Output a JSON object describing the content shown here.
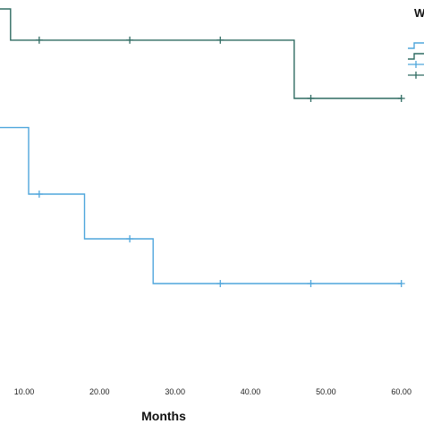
{
  "chart_data": {
    "type": "line",
    "title": "",
    "xlabel": "Months",
    "ylabel": "",
    "xlim": [
      6.8,
      63
    ],
    "ylim": [
      0,
      1
    ],
    "x_ticks": [
      "10.00",
      "20.00",
      "30.00",
      "40.00",
      "50.00",
      "60.00"
    ],
    "legend_title": "W",
    "legend_position": "right",
    "grid": false,
    "series": [
      {
        "color": "#2f6b62",
        "points": [
          [
            6.8,
            1.0
          ],
          [
            8.2,
            1.0
          ],
          [
            8.2,
            0.97
          ],
          [
            45.8,
            0.97
          ],
          [
            45.8,
            0.914
          ],
          [
            60,
            0.914
          ]
        ],
        "censored": [
          [
            12,
            0.97
          ],
          [
            24,
            0.97
          ],
          [
            36,
            0.97
          ],
          [
            48,
            0.914
          ],
          [
            60,
            0.914
          ]
        ]
      },
      {
        "color": "#4fa6dc",
        "points": [
          [
            6.8,
            0.886
          ],
          [
            10.6,
            0.886
          ],
          [
            10.6,
            0.822
          ],
          [
            18,
            0.822
          ],
          [
            18,
            0.779
          ],
          [
            27.1,
            0.779
          ],
          [
            27.1,
            0.736
          ],
          [
            60,
            0.736
          ]
        ],
        "censored": [
          [
            12,
            0.822
          ],
          [
            24,
            0.779
          ],
          [
            36,
            0.736
          ],
          [
            48,
            0.736
          ],
          [
            60,
            0.736
          ]
        ]
      }
    ],
    "legend_entries": [
      {
        "style": "line",
        "color": "#4fa6dc"
      },
      {
        "style": "line",
        "color": "#2f6b62"
      },
      {
        "style": "censored",
        "color": "#4fa6dc"
      },
      {
        "style": "censored",
        "color": "#2f6b62"
      }
    ]
  }
}
